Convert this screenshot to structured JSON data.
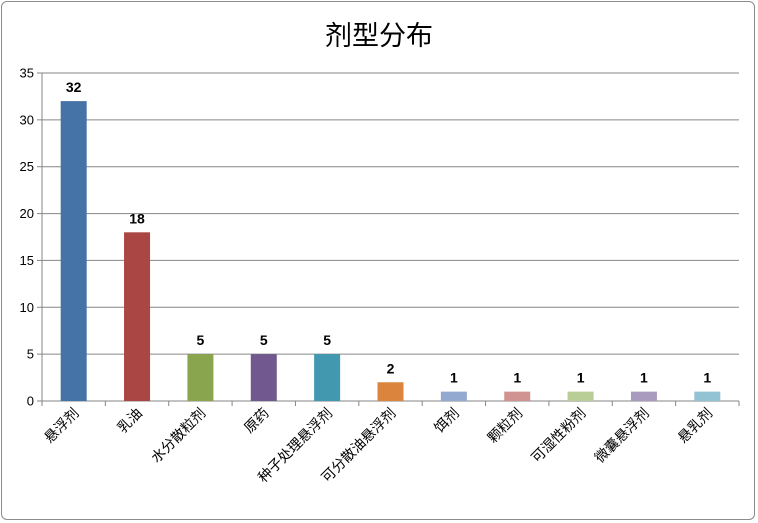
{
  "chart_data": {
    "type": "bar",
    "title": "剂型分布",
    "xlabel": "",
    "ylabel": "",
    "ylim": [
      0,
      35
    ],
    "yticks": [
      0,
      5,
      10,
      15,
      20,
      25,
      30,
      35
    ],
    "grid": true,
    "legend": "none",
    "categories": [
      "悬浮剂",
      "乳油",
      "水分散粒剂",
      "原药",
      "种子处理悬浮剂",
      "可分散油悬浮剂",
      "饵剂",
      "颗粒剂",
      "可湿性粉剂",
      "微囊悬浮剂",
      "悬乳剂"
    ],
    "values": [
      32,
      18,
      5,
      5,
      5,
      2,
      1,
      1,
      1,
      1,
      1
    ],
    "colors": [
      "#4572a7",
      "#aa4643",
      "#89a54e",
      "#71588f",
      "#4198af",
      "#db843d",
      "#93a9cf",
      "#d19392",
      "#b9cd96",
      "#a99bbd",
      "#92c3d4"
    ]
  }
}
